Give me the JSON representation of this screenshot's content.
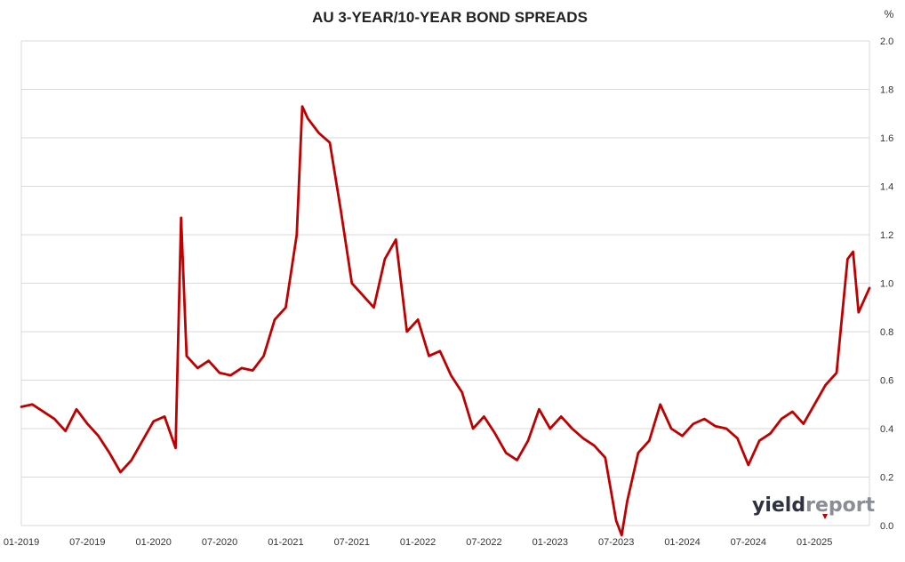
{
  "chart_data": {
    "type": "line",
    "title": "AU 3-YEAR/10-YEAR BOND SPREADS",
    "unit_label": "%",
    "ylim": [
      0.0,
      2.0
    ],
    "y_ticks": [
      "0.0",
      "0.2",
      "0.4",
      "0.6",
      "0.8",
      "1.0",
      "1.2",
      "1.4",
      "1.6",
      "1.8",
      "2.0"
    ],
    "x_ticks": [
      "01-2019",
      "07-2019",
      "01-2020",
      "07-2020",
      "01-2021",
      "07-2021",
      "01-2022",
      "07-2022",
      "01-2023",
      "07-2023",
      "01-2024",
      "07-2024",
      "01-2025"
    ],
    "grid": "horizontal",
    "line_color": "#c00000",
    "series": [
      {
        "x": [
          "2019-01",
          "2019-02",
          "2019-03",
          "2019-04",
          "2019-05",
          "2019-06",
          "2019-07",
          "2019-08",
          "2019-09",
          "2019-10",
          "2019-11",
          "2019-12",
          "2020-01",
          "2020-02",
          "2020-03",
          "2020-04",
          "2020-05",
          "2020-06",
          "2020-07",
          "2020-08",
          "2020-09",
          "2020-10",
          "2020-11",
          "2020-12",
          "2021-01",
          "2021-02",
          "2021-03",
          "2021-04",
          "2021-05",
          "2021-06",
          "2021-07",
          "2021-08",
          "2021-09",
          "2021-10",
          "2021-11",
          "2021-12",
          "2022-01",
          "2022-02",
          "2022-03",
          "2022-04",
          "2022-05",
          "2022-06",
          "2022-07",
          "2022-08",
          "2022-09",
          "2022-10",
          "2022-11",
          "2022-12",
          "2023-01",
          "2023-02",
          "2023-03",
          "2023-04",
          "2023-05",
          "2023-06",
          "2023-07",
          "2023-08",
          "2023-09",
          "2023-10",
          "2023-11",
          "2023-12",
          "2024-01",
          "2024-02",
          "2024-03",
          "2024-04",
          "2024-05",
          "2024-06",
          "2024-07",
          "2024-08",
          "2024-09",
          "2024-10",
          "2024-11",
          "2024-12",
          "2025-01",
          "2025-02",
          "2025-03",
          "2025-04",
          "2025-05",
          "2025-06"
        ],
        "values": [
          0.49,
          0.5,
          0.47,
          0.44,
          0.39,
          0.48,
          0.42,
          0.37,
          0.3,
          0.22,
          0.27,
          0.35,
          0.43,
          0.45,
          0.32,
          0.7,
          0.65,
          0.68,
          0.63,
          0.62,
          0.65,
          0.64,
          0.7,
          0.85,
          0.9,
          1.2,
          1.68,
          1.62,
          1.58,
          1.3,
          1.0,
          0.95,
          0.9,
          1.1,
          1.18,
          0.8,
          0.85,
          0.7,
          0.72,
          0.62,
          0.55,
          0.4,
          0.45,
          0.38,
          0.3,
          0.27,
          0.35,
          0.48,
          0.4,
          0.45,
          0.4,
          0.36,
          0.33,
          0.28,
          0.02,
          0.1,
          0.3,
          0.35,
          0.5,
          0.4,
          0.37,
          0.42,
          0.44,
          0.41,
          0.4,
          0.36,
          0.25,
          0.35,
          0.38,
          0.44,
          0.47,
          0.42,
          0.5,
          0.58,
          0.63,
          1.1,
          0.88,
          0.98
        ]
      }
    ],
    "peaks": [
      {
        "x": "2020-03",
        "y": 1.27
      },
      {
        "x": "2021-02",
        "y": 1.73
      },
      {
        "x": "2023-07",
        "y": -0.04
      },
      {
        "x": "2025-04",
        "y": 1.13
      }
    ]
  },
  "logo": {
    "part1": "yield",
    "part2": "report",
    "color1": "#2d3142",
    "color2": "#8a8d96",
    "accent": "#c00000"
  }
}
